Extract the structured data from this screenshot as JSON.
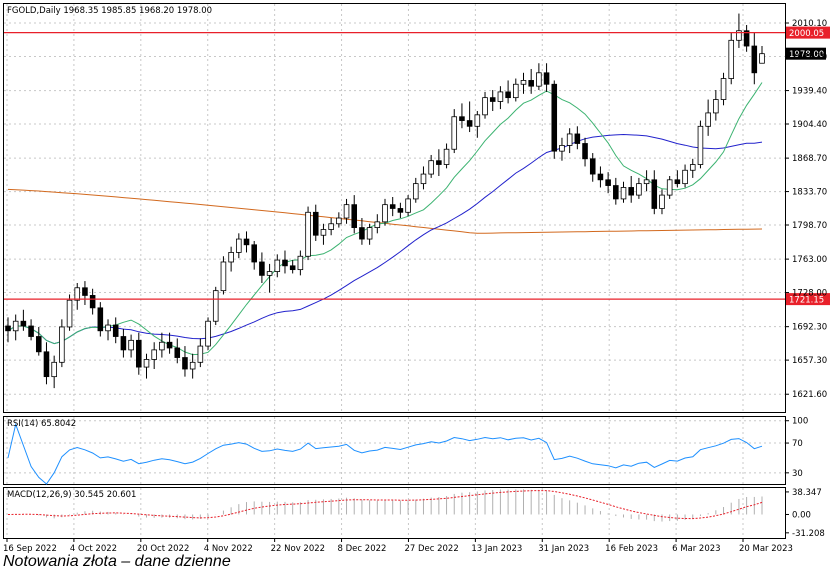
{
  "caption": "Notowania złota – dane dzienne",
  "colors": {
    "ma_fast": "#3cb371",
    "ma_mid": "#2222cc",
    "ma_slow": "#d2691e",
    "level": "#e8202a",
    "rsi": "#1e90ff",
    "macd_signal": "#e8202a",
    "macd_hist": "#b0b0b0"
  },
  "chart_data": [
    {
      "type": "candlestick",
      "title": "FGOLD,Daily  1968.35 1985.85 1968.20 1978.00",
      "ohlc_header": {
        "open": 1968.35,
        "high": 1985.85,
        "low": 1968.2,
        "close": 1978.0
      },
      "x_labels": [
        "16 Sep 2022",
        "4 Oct 2022",
        "20 Oct 2022",
        "4 Nov 2022",
        "22 Nov 2022",
        "8 Dec 2022",
        "27 Dec 2022",
        "13 Jan 2023",
        "31 Jan 2023",
        "16 Feb 2023",
        "6 Mar 2023",
        "20 Mar 2023"
      ],
      "y_ticks": [
        1621.6,
        1657.3,
        1692.3,
        1728.0,
        1763.0,
        1798.7,
        1833.7,
        1868.7,
        1904.4,
        1939.4,
        1975.1,
        2010.1
      ],
      "ylim": [
        1603,
        2030
      ],
      "current_price_label": "1978.00",
      "levels": [
        {
          "value": 2000.05,
          "label": "2000.05"
        },
        {
          "value": 1721.15,
          "label": "1721.15"
        }
      ],
      "candles": [
        [
          1693,
          1702,
          1676,
          1688
        ],
        [
          1688,
          1705,
          1678,
          1698
        ],
        [
          1698,
          1710,
          1688,
          1693
        ],
        [
          1693,
          1700,
          1678,
          1682
        ],
        [
          1682,
          1692,
          1662,
          1666
        ],
        [
          1666,
          1676,
          1632,
          1640
        ],
        [
          1640,
          1662,
          1628,
          1655
        ],
        [
          1655,
          1700,
          1650,
          1692
        ],
        [
          1692,
          1726,
          1688,
          1720
        ],
        [
          1720,
          1738,
          1710,
          1733
        ],
        [
          1733,
          1740,
          1715,
          1725
        ],
        [
          1725,
          1732,
          1705,
          1712
        ],
        [
          1712,
          1718,
          1682,
          1688
        ],
        [
          1688,
          1700,
          1678,
          1694
        ],
        [
          1694,
          1702,
          1675,
          1682
        ],
        [
          1682,
          1690,
          1660,
          1668
        ],
        [
          1668,
          1684,
          1660,
          1678
        ],
        [
          1678,
          1686,
          1642,
          1650
        ],
        [
          1650,
          1664,
          1638,
          1658
        ],
        [
          1658,
          1676,
          1648,
          1668
        ],
        [
          1668,
          1686,
          1660,
          1676
        ],
        [
          1676,
          1686,
          1664,
          1670
        ],
        [
          1670,
          1680,
          1654,
          1660
        ],
        [
          1660,
          1672,
          1640,
          1648
        ],
        [
          1648,
          1664,
          1638,
          1655
        ],
        [
          1655,
          1680,
          1650,
          1672
        ],
        [
          1672,
          1702,
          1668,
          1698
        ],
        [
          1698,
          1734,
          1694,
          1730
        ],
        [
          1730,
          1766,
          1726,
          1760
        ],
        [
          1760,
          1776,
          1750,
          1770
        ],
        [
          1770,
          1790,
          1764,
          1784
        ],
        [
          1784,
          1792,
          1770,
          1778
        ],
        [
          1778,
          1782,
          1752,
          1760
        ],
        [
          1760,
          1770,
          1738,
          1746
        ],
        [
          1746,
          1758,
          1728,
          1750
        ],
        [
          1750,
          1768,
          1744,
          1762
        ],
        [
          1762,
          1772,
          1748,
          1756
        ],
        [
          1756,
          1762,
          1748,
          1752
        ],
        [
          1752,
          1772,
          1746,
          1766
        ],
        [
          1766,
          1818,
          1762,
          1812
        ],
        [
          1812,
          1820,
          1782,
          1788
        ],
        [
          1788,
          1800,
          1778,
          1794
        ],
        [
          1794,
          1806,
          1788,
          1800
        ],
        [
          1800,
          1812,
          1796,
          1806
        ],
        [
          1806,
          1826,
          1800,
          1820
        ],
        [
          1820,
          1830,
          1790,
          1796
        ],
        [
          1796,
          1806,
          1778,
          1784
        ],
        [
          1784,
          1800,
          1778,
          1796
        ],
        [
          1796,
          1810,
          1790,
          1802
        ],
        [
          1802,
          1826,
          1798,
          1820
        ],
        [
          1820,
          1828,
          1808,
          1816
        ],
        [
          1816,
          1822,
          1806,
          1812
        ],
        [
          1812,
          1830,
          1808,
          1826
        ],
        [
          1826,
          1848,
          1822,
          1842
        ],
        [
          1842,
          1860,
          1836,
          1852
        ],
        [
          1852,
          1872,
          1848,
          1866
        ],
        [
          1866,
          1878,
          1850,
          1862
        ],
        [
          1862,
          1884,
          1858,
          1878
        ],
        [
          1878,
          1920,
          1874,
          1912
        ],
        [
          1912,
          1926,
          1900,
          1908
        ],
        [
          1908,
          1928,
          1896,
          1902
        ],
        [
          1902,
          1918,
          1890,
          1914
        ],
        [
          1914,
          1938,
          1910,
          1932
        ],
        [
          1932,
          1940,
          1918,
          1928
        ],
        [
          1928,
          1944,
          1920,
          1938
        ],
        [
          1938,
          1950,
          1926,
          1932
        ],
        [
          1932,
          1952,
          1928,
          1946
        ],
        [
          1946,
          1958,
          1936,
          1950
        ],
        [
          1950,
          1962,
          1936,
          1944
        ],
        [
          1944,
          1968,
          1940,
          1958
        ],
        [
          1958,
          1968,
          1938,
          1946
        ],
        [
          1946,
          1950,
          1868,
          1876
        ],
        [
          1876,
          1890,
          1866,
          1882
        ],
        [
          1882,
          1900,
          1874,
          1894
        ],
        [
          1894,
          1902,
          1878,
          1884
        ],
        [
          1884,
          1890,
          1860,
          1868
        ],
        [
          1868,
          1874,
          1844,
          1852
        ],
        [
          1852,
          1860,
          1838,
          1846
        ],
        [
          1846,
          1854,
          1832,
          1840
        ],
        [
          1840,
          1848,
          1820,
          1826
        ],
        [
          1826,
          1844,
          1822,
          1838
        ],
        [
          1838,
          1850,
          1822,
          1830
        ],
        [
          1830,
          1848,
          1826,
          1842
        ],
        [
          1842,
          1856,
          1834,
          1846
        ],
        [
          1846,
          1856,
          1810,
          1816
        ],
        [
          1816,
          1836,
          1810,
          1830
        ],
        [
          1830,
          1850,
          1826,
          1846
        ],
        [
          1846,
          1856,
          1838,
          1842
        ],
        [
          1842,
          1862,
          1838,
          1856
        ],
        [
          1856,
          1868,
          1848,
          1862
        ],
        [
          1862,
          1908,
          1858,
          1902
        ],
        [
          1902,
          1930,
          1892,
          1916
        ],
        [
          1916,
          1940,
          1908,
          1930
        ],
        [
          1930,
          1958,
          1924,
          1952
        ],
        [
          1952,
          2000,
          1946,
          1992
        ],
        [
          1992,
          2020,
          1984,
          2002
        ],
        [
          2002,
          2008,
          1980,
          1986
        ],
        [
          1986,
          2000,
          1946,
          1958
        ],
        [
          1968,
          1986,
          1968,
          1978
        ]
      ]
    },
    {
      "type": "line",
      "title": "RSI(14) 65.8042",
      "y_ticks": [
        30,
        70,
        100
      ],
      "ylim": [
        15,
        105
      ],
      "last_value": 65.8042
    },
    {
      "type": "bar",
      "title": "MACD(12,26,9) 30.545 20.601",
      "macd": 30.545,
      "signal": 20.601,
      "y_ticks": [
        -31.208,
        0.0,
        38.347
      ],
      "ylim": [
        -40,
        45
      ]
    }
  ]
}
